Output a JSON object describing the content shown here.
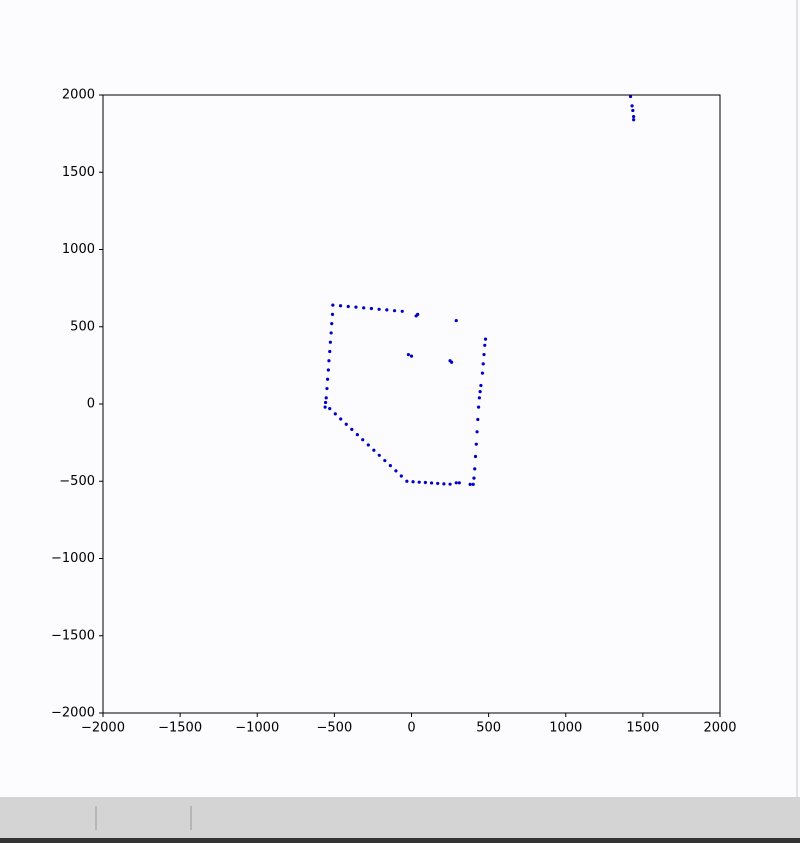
{
  "chart_data": {
    "type": "scatter",
    "color": "#0000cc",
    "xlim": [
      -2000,
      2000
    ],
    "ylim": [
      -2000,
      2000
    ],
    "xticks": [
      {
        "value": -2000,
        "label": "−2000"
      },
      {
        "value": -1500,
        "label": "−1500"
      },
      {
        "value": -1000,
        "label": "−1000"
      },
      {
        "value": -500,
        "label": "−500"
      },
      0,
      500,
      1000,
      1500,
      2000
    ],
    "yticks": [
      {
        "value": -2000,
        "label": "−2000"
      },
      {
        "value": -1500,
        "label": "−1500"
      },
      {
        "value": -1000,
        "label": "−1000"
      },
      {
        "value": -500,
        "label": "−500"
      },
      0,
      500,
      1000,
      1500,
      2000
    ],
    "x": [
      -510,
      -460,
      -410,
      -360,
      -310,
      -260,
      -210,
      -160,
      -110,
      -60,
      -512,
      -517,
      -521,
      -526,
      -530,
      -535,
      -539,
      -544,
      -548,
      -553,
      -557,
      -560,
      -530,
      -494,
      -459,
      -423,
      -387,
      -351,
      -316,
      -280,
      -244,
      -209,
      -173,
      -137,
      -101,
      -66,
      -30,
      10,
      50,
      90,
      130,
      170,
      210,
      250,
      290,
      310,
      380,
      400,
      405,
      410,
      415,
      420,
      425,
      430,
      435,
      440,
      445,
      450,
      460,
      465,
      470,
      475,
      480,
      30,
      40,
      290,
      -20,
      0,
      250,
      260,
      1420,
      1430,
      1435,
      1440,
      1440
    ],
    "values": [
      640,
      636,
      631,
      627,
      622,
      618,
      613,
      609,
      604,
      600,
      580,
      520,
      460,
      400,
      340,
      280,
      220,
      160,
      100,
      40,
      10,
      -20,
      -30,
      -64,
      -97,
      -131,
      -164,
      -198,
      -231,
      -265,
      -299,
      -332,
      -366,
      -399,
      -433,
      -466,
      -500,
      -503,
      -506,
      -508,
      -511,
      -514,
      -517,
      -519,
      -510,
      -510,
      -520,
      -520,
      -480,
      -420,
      -340,
      -260,
      -180,
      -100,
      -20,
      40,
      80,
      120,
      200,
      260,
      320,
      380,
      420,
      570,
      580,
      540,
      320,
      310,
      280,
      270,
      1990,
      1930,
      1900,
      1860,
      1840
    ]
  }
}
